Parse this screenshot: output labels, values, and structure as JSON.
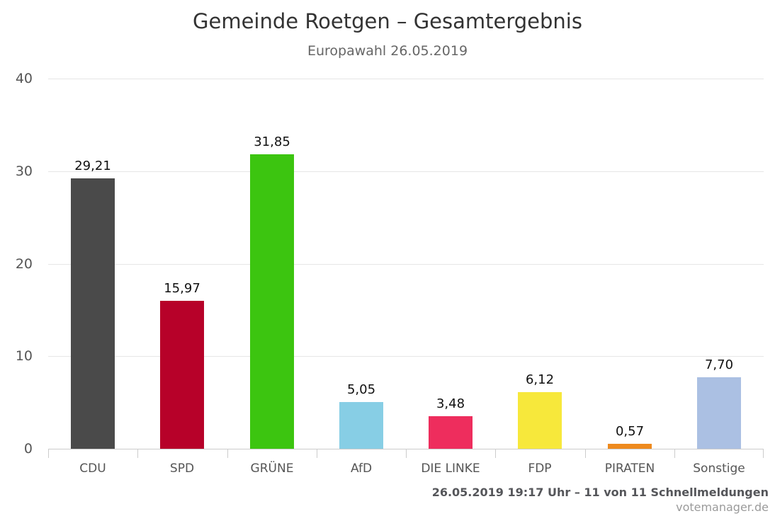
{
  "chart_data": {
    "type": "bar",
    "title": "Gemeinde Roetgen – Gesamtergebnis",
    "subtitle": "Europawahl 26.05.2019",
    "categories": [
      "CDU",
      "SPD",
      "GRÜNE",
      "AfD",
      "DIE LINKE",
      "FDP",
      "PIRATEN",
      "Sonstige"
    ],
    "values": [
      29.21,
      15.97,
      31.85,
      5.05,
      3.48,
      6.12,
      0.57,
      7.7
    ],
    "value_labels": [
      "29,21",
      "15,97",
      "31,85",
      "5,05",
      "3,48",
      "6,12",
      "0,57",
      "7,70"
    ],
    "colors": [
      "#4a4a4a",
      "#b70129",
      "#3cc510",
      "#87cee5",
      "#ee2d5d",
      "#f7e83b",
      "#ee8a1e",
      "#abc0e3"
    ],
    "xlabel": "",
    "ylabel": "",
    "ylim": [
      0,
      40
    ],
    "yticks": [
      40,
      30,
      20,
      10,
      0
    ],
    "grid": true,
    "legend": "none"
  },
  "footer": {
    "status_line": "26.05.2019 19:17 Uhr – 11 von 11 Schnellmeldungen",
    "credits": "votemanager.de"
  }
}
